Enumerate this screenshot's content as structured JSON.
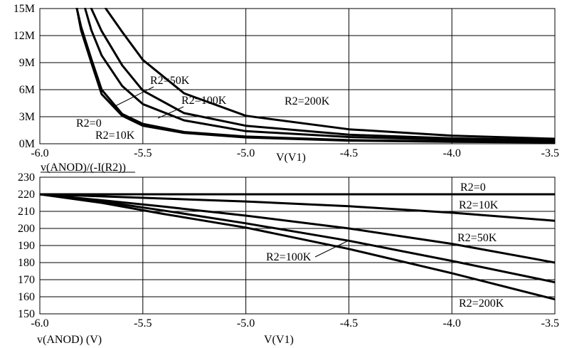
{
  "chart_data": [
    {
      "type": "line",
      "title": "",
      "xlabel": "V(V1)",
      "ylabel": "v(ANOD)/(-I(R2))",
      "xlim": [
        -6.0,
        -3.5
      ],
      "ylim": [
        0,
        15
      ],
      "x_ticks": [
        "-6.0",
        "-5.5",
        "-5.0",
        "-4.5",
        "-4.0",
        "-3.5"
      ],
      "y_ticks": [
        "0M",
        "3M",
        "6M",
        "9M",
        "12M",
        "15M"
      ],
      "grid": true,
      "series": [
        {
          "name": "R2=0",
          "x": [
            -5.82,
            -5.8,
            -5.75,
            -5.7,
            -5.6,
            -5.5,
            -5.3,
            -5.0,
            -4.5,
            -4.0,
            -3.5
          ],
          "y": [
            15.0,
            12.6,
            9.0,
            5.5,
            3.1,
            2.0,
            1.2,
            0.7,
            0.35,
            0.22,
            0.15
          ]
        },
        {
          "name": "R2=10K",
          "x": [
            -5.82,
            -5.8,
            -5.75,
            -5.7,
            -5.6,
            -5.5,
            -5.3,
            -5.0,
            -4.5,
            -4.0,
            -3.5
          ],
          "y": [
            15.0,
            13.0,
            9.4,
            6.0,
            3.3,
            2.2,
            1.3,
            0.8,
            0.4,
            0.25,
            0.17
          ]
        },
        {
          "name": "R2=50K",
          "x": [
            -5.78,
            -5.75,
            -5.7,
            -5.6,
            -5.5,
            -5.3,
            -5.0,
            -4.5,
            -4.0,
            -3.5
          ],
          "y": [
            15.0,
            12.6,
            9.8,
            6.4,
            4.4,
            2.6,
            1.4,
            0.75,
            0.45,
            0.3
          ]
        },
        {
          "name": "R2=100K",
          "x": [
            -5.75,
            -5.7,
            -5.6,
            -5.5,
            -5.3,
            -5.0,
            -4.5,
            -4.0,
            -3.5
          ],
          "y": [
            15.0,
            12.5,
            8.7,
            5.9,
            3.4,
            2.0,
            1.0,
            0.6,
            0.4
          ]
        },
        {
          "name": "R2=200K",
          "x": [
            -5.68,
            -5.6,
            -5.5,
            -5.3,
            -5.0,
            -4.5,
            -4.0,
            -3.5
          ],
          "y": [
            15.0,
            12.4,
            9.3,
            5.6,
            3.1,
            1.6,
            0.9,
            0.55
          ]
        }
      ],
      "annotations": [
        "R2=50K",
        "R2=100K",
        "R2=200K",
        "R2=0",
        "R2=10K"
      ]
    },
    {
      "type": "line",
      "title": "",
      "xlabel": "V(V1)",
      "ylabel": "v(ANOD) (V)",
      "xlim": [
        -6.0,
        -3.5
      ],
      "ylim": [
        150,
        230
      ],
      "x_ticks": [
        "-6.0",
        "-5.5",
        "-5.0",
        "-4.5",
        "-4.0",
        "-3.5"
      ],
      "y_ticks": [
        "150",
        "160",
        "170",
        "180",
        "190",
        "200",
        "210",
        "220",
        "230"
      ],
      "grid": true,
      "series": [
        {
          "name": "R2=0",
          "x": [
            -6.0,
            -3.5
          ],
          "y": [
            220,
            220
          ]
        },
        {
          "name": "R2=10K",
          "x": [
            -6.0,
            -5.7,
            -5.4,
            -5.0,
            -4.5,
            -4.0,
            -3.5
          ],
          "y": [
            220,
            218.8,
            217.5,
            215.8,
            213.0,
            209.2,
            204.5
          ]
        },
        {
          "name": "R2=50K",
          "x": [
            -6.0,
            -5.7,
            -5.4,
            -5.0,
            -4.5,
            -4.0,
            -3.5
          ],
          "y": [
            220,
            216.5,
            212.8,
            207.5,
            200.0,
            191.0,
            180.0
          ]
        },
        {
          "name": "R2=100K",
          "x": [
            -6.0,
            -5.7,
            -5.4,
            -5.0,
            -4.5,
            -4.0,
            -3.5
          ],
          "y": [
            220,
            215.8,
            210.5,
            203.0,
            192.8,
            181.0,
            168.5
          ]
        },
        {
          "name": "R2=200K",
          "x": [
            -6.0,
            -5.7,
            -5.4,
            -5.0,
            -4.5,
            -4.0,
            -3.5
          ],
          "y": [
            220,
            215.0,
            208.5,
            200.5,
            188.0,
            173.8,
            158.5
          ]
        }
      ],
      "annotations": [
        "R2=0",
        "R2=10K",
        "R2=50K",
        "R2=100K",
        "R2=200K"
      ]
    }
  ]
}
